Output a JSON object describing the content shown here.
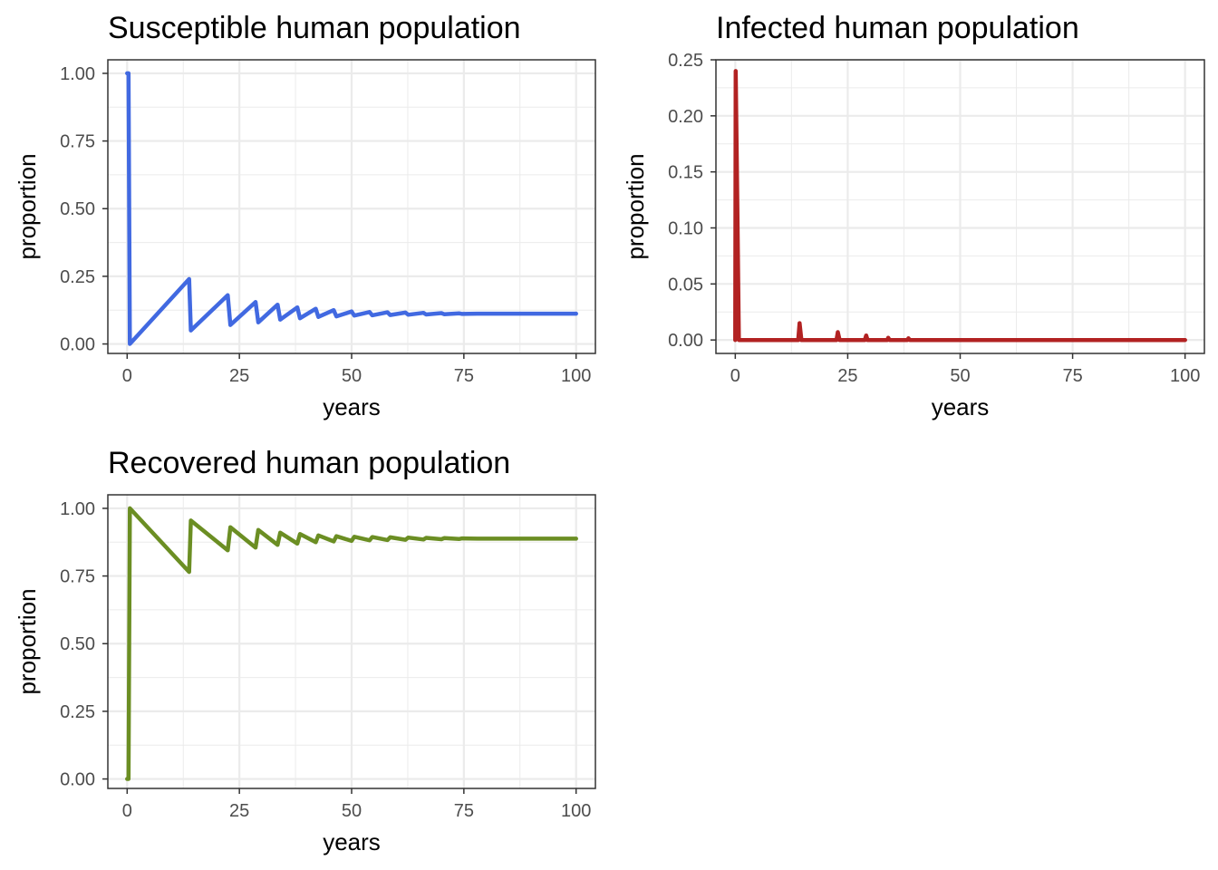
{
  "chart_data": [
    {
      "type": "line",
      "title": "Susceptible human population",
      "xlabel": "years",
      "ylabel": "proportion",
      "xlim": [
        -4.3,
        104.3
      ],
      "ylim": [
        -0.035,
        1.05
      ],
      "xticks": [
        0,
        25,
        50,
        75,
        100
      ],
      "xtick_labels": [
        "0",
        "25",
        "50",
        "75",
        "100"
      ],
      "yticks": [
        0,
        0.25,
        0.5,
        0.75,
        1.0
      ],
      "ytick_labels": [
        "0.00",
        "0.25",
        "0.50",
        "0.75",
        "1.00"
      ],
      "grid": true,
      "series": [
        {
          "color": "#4169E1",
          "x": [
            0,
            0.3,
            0.6,
            13.8,
            14.2,
            22.4,
            23.0,
            28.6,
            29.2,
            33.5,
            34.1,
            37.9,
            38.5,
            42.0,
            42.6,
            46.0,
            46.6,
            50.0,
            50.6,
            54.0,
            54.6,
            58.0,
            58.6,
            62.0,
            62.6,
            66.0,
            66.6,
            70.0,
            70.6,
            74.0,
            74.6,
            78.0,
            100
          ],
          "y": [
            1.0,
            1.0,
            0.0,
            0.24,
            0.05,
            0.18,
            0.07,
            0.155,
            0.08,
            0.145,
            0.09,
            0.135,
            0.095,
            0.13,
            0.1,
            0.125,
            0.102,
            0.12,
            0.105,
            0.118,
            0.106,
            0.117,
            0.107,
            0.116,
            0.108,
            0.115,
            0.109,
            0.114,
            0.11,
            0.113,
            0.111,
            0.112,
            0.112
          ]
        }
      ]
    },
    {
      "type": "line",
      "title": "Infected human population",
      "xlabel": "years",
      "ylabel": "proportion",
      "xlim": [
        -4.3,
        104.3
      ],
      "ylim": [
        -0.012,
        0.25
      ],
      "xticks": [
        0,
        25,
        50,
        75,
        100
      ],
      "xtick_labels": [
        "0",
        "25",
        "50",
        "75",
        "100"
      ],
      "yticks": [
        0,
        0.05,
        0.1,
        0.15,
        0.2,
        0.25
      ],
      "ytick_labels": [
        "0.00",
        "0.05",
        "0.10",
        "0.15",
        "0.20",
        "0.25"
      ],
      "grid": true,
      "series": [
        {
          "color": "#B22222",
          "x": [
            0,
            0.1,
            0.45,
            0.8,
            14.0,
            14.3,
            14.7,
            22.5,
            22.8,
            23.2,
            28.8,
            29.1,
            29.4,
            33.8,
            34.0,
            34.3,
            38.3,
            38.5,
            38.8,
            100
          ],
          "y": [
            0.0,
            0.24,
            0.12,
            0.0,
            0.0,
            0.015,
            0.0,
            0.0,
            0.007,
            0.0,
            0.0,
            0.004,
            0.0,
            0.0,
            0.002,
            0.0,
            0.0,
            0.0015,
            0.0,
            0.0
          ]
        }
      ]
    },
    {
      "type": "line",
      "title": "Recovered human population",
      "xlabel": "years",
      "ylabel": "proportion",
      "xlim": [
        -4.3,
        104.3
      ],
      "ylim": [
        -0.035,
        1.05
      ],
      "xticks": [
        0,
        25,
        50,
        75,
        100
      ],
      "xtick_labels": [
        "0",
        "25",
        "50",
        "75",
        "100"
      ],
      "yticks": [
        0,
        0.25,
        0.5,
        0.75,
        1.0
      ],
      "ytick_labels": [
        "0.00",
        "0.25",
        "0.50",
        "0.75",
        "1.00"
      ],
      "grid": true,
      "series": [
        {
          "color": "#6B8E23",
          "x": [
            0,
            0.3,
            0.6,
            13.8,
            14.2,
            22.4,
            23.0,
            28.6,
            29.2,
            33.5,
            34.1,
            37.9,
            38.5,
            42.0,
            42.6,
            46.0,
            46.6,
            50.0,
            50.6,
            54.0,
            54.6,
            58.0,
            58.6,
            62.0,
            62.6,
            66.0,
            66.6,
            70.0,
            70.6,
            74.0,
            74.6,
            78.0,
            100
          ],
          "y": [
            0.0,
            0.0,
            1.0,
            0.765,
            0.955,
            0.845,
            0.93,
            0.855,
            0.92,
            0.865,
            0.91,
            0.87,
            0.905,
            0.875,
            0.9,
            0.878,
            0.897,
            0.88,
            0.895,
            0.882,
            0.894,
            0.883,
            0.893,
            0.884,
            0.892,
            0.885,
            0.891,
            0.886,
            0.89,
            0.887,
            0.889,
            0.888,
            0.888
          ]
        }
      ]
    }
  ]
}
